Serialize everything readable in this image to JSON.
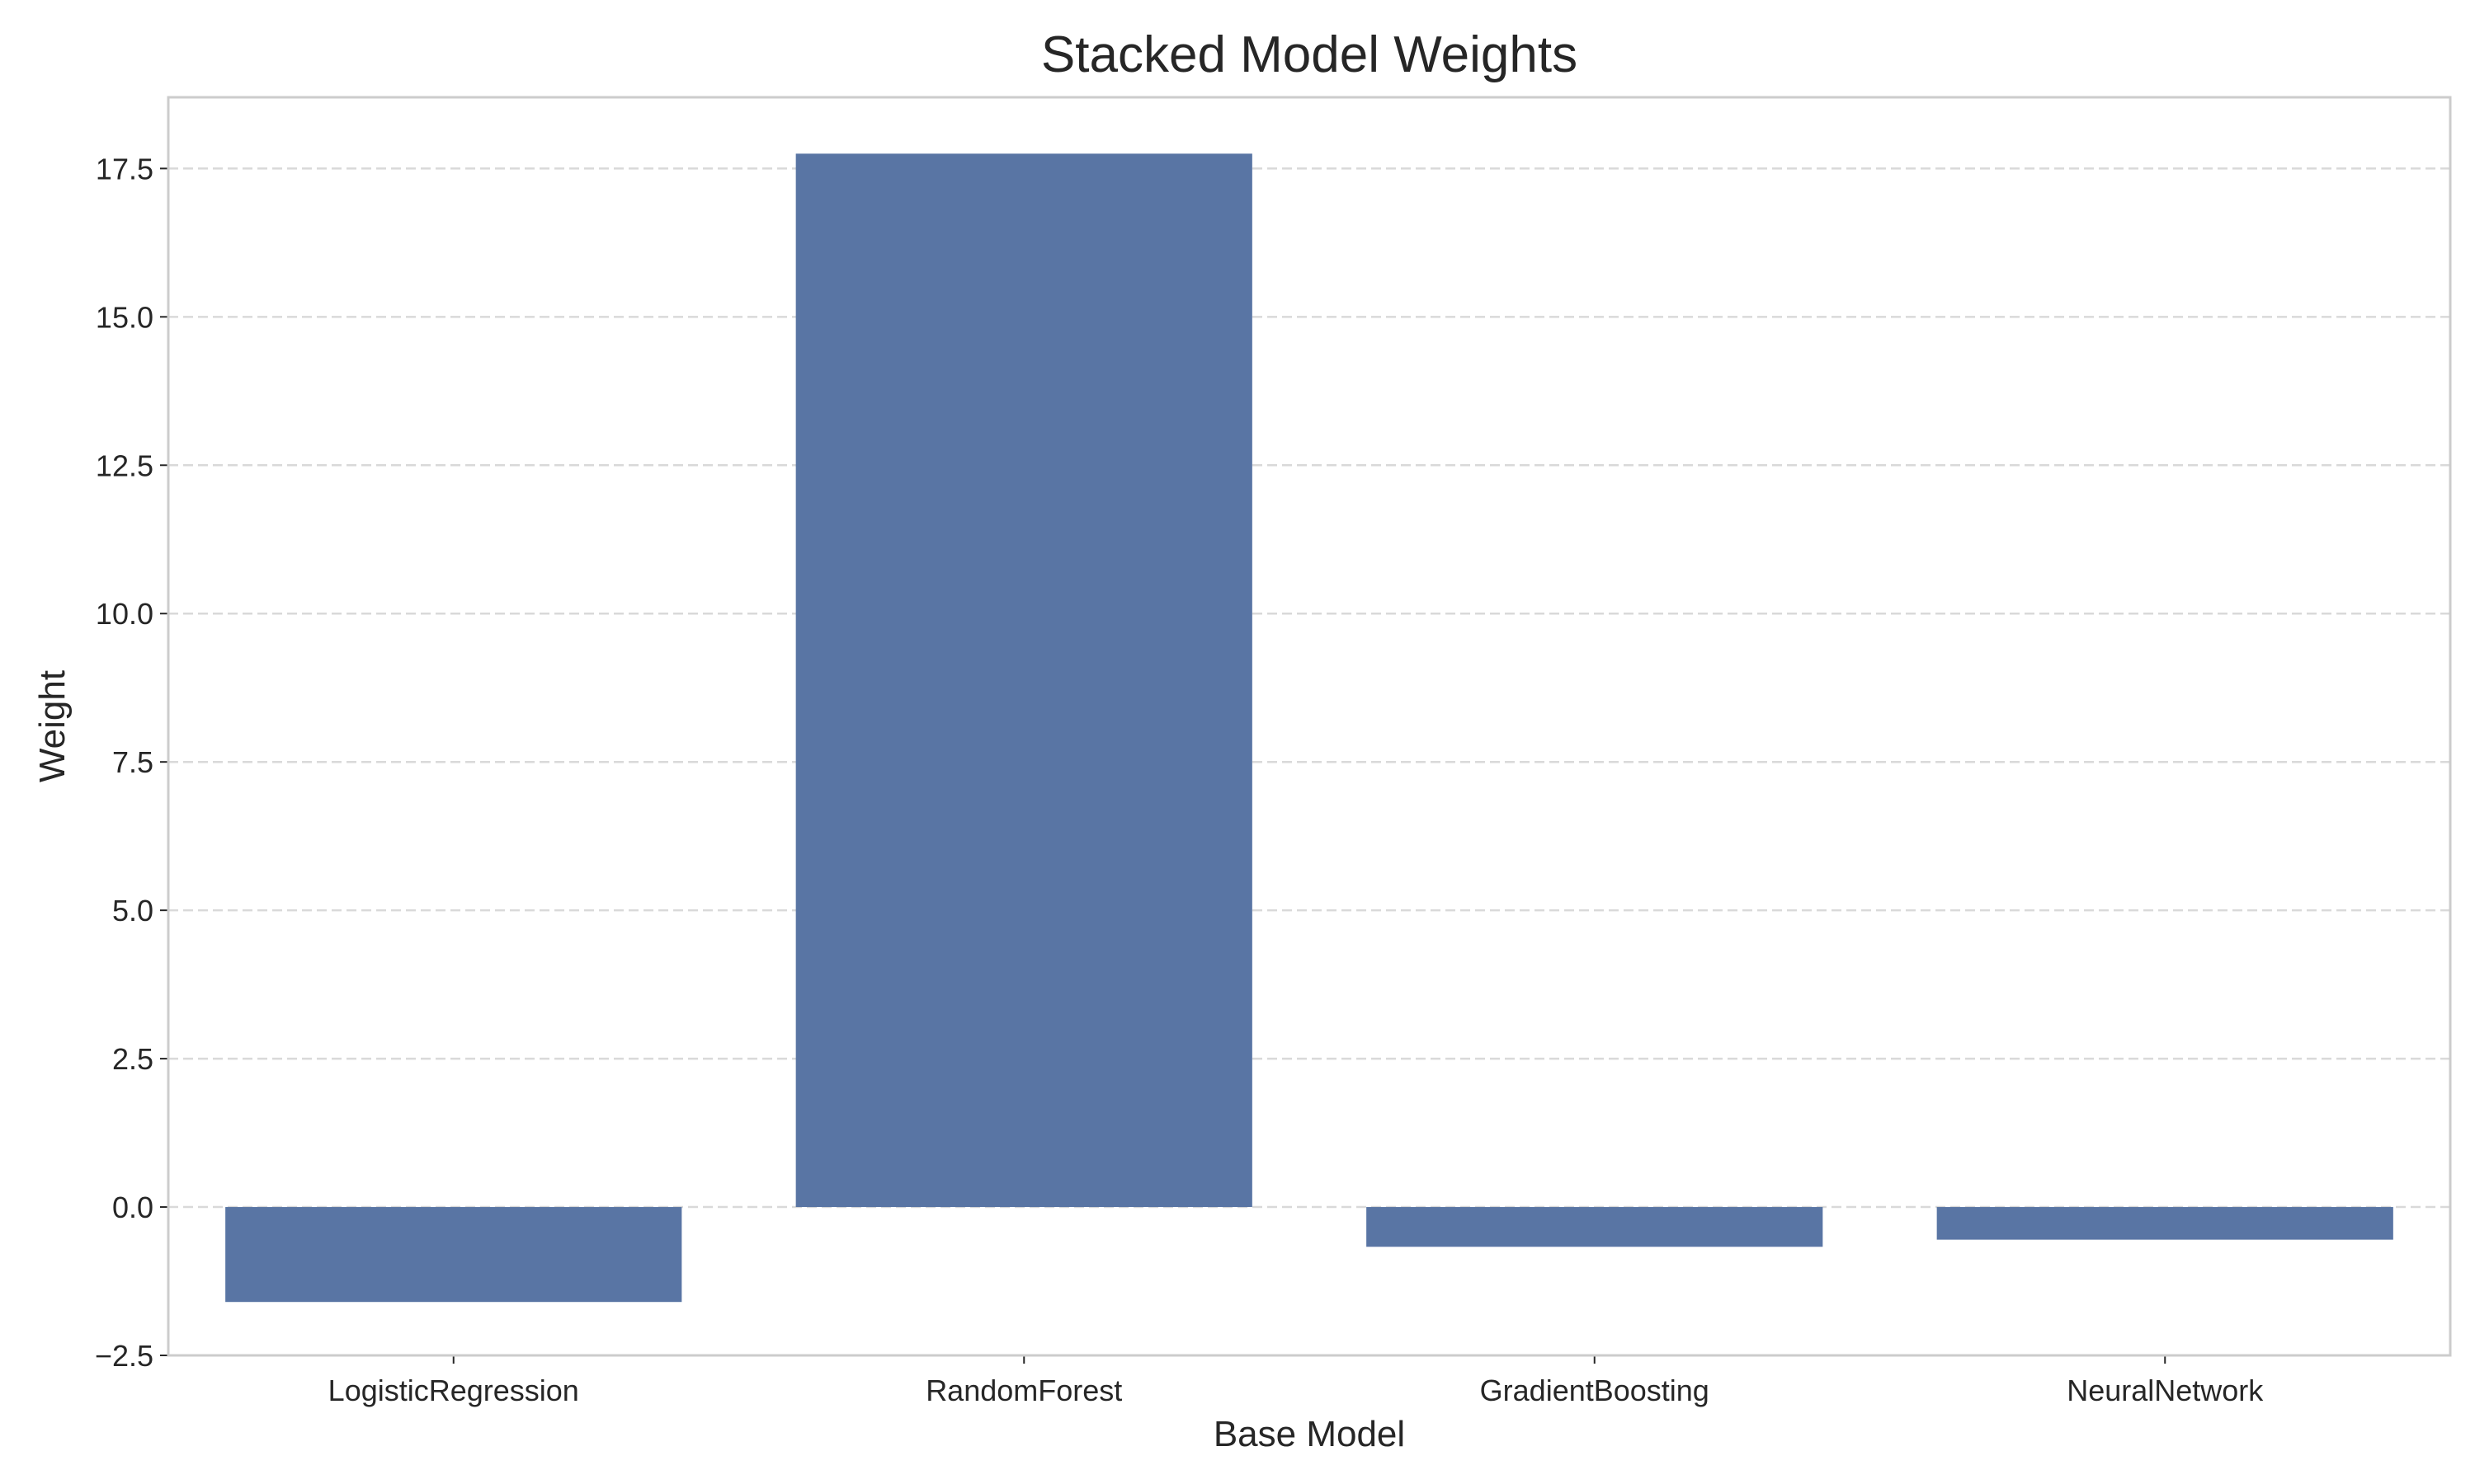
{
  "chart_data": {
    "type": "bar",
    "title": "Stacked Model Weights",
    "xlabel": "Base Model",
    "ylabel": "Weight",
    "categories": [
      "LogisticRegression",
      "RandomForest",
      "GradientBoosting",
      "NeuralNetwork"
    ],
    "values": [
      -1.6,
      17.75,
      -0.67,
      -0.55
    ],
    "ylim": [
      -2.5,
      18.7
    ],
    "yticks": [
      -2.5,
      0.0,
      2.5,
      5.0,
      7.5,
      10.0,
      12.5,
      15.0,
      17.5
    ],
    "ytick_labels": [
      "−2.5",
      "0.0",
      "2.5",
      "5.0",
      "7.5",
      "10.0",
      "12.5",
      "15.0",
      "17.5"
    ],
    "grid": true,
    "bar_color": "#5975a4"
  }
}
